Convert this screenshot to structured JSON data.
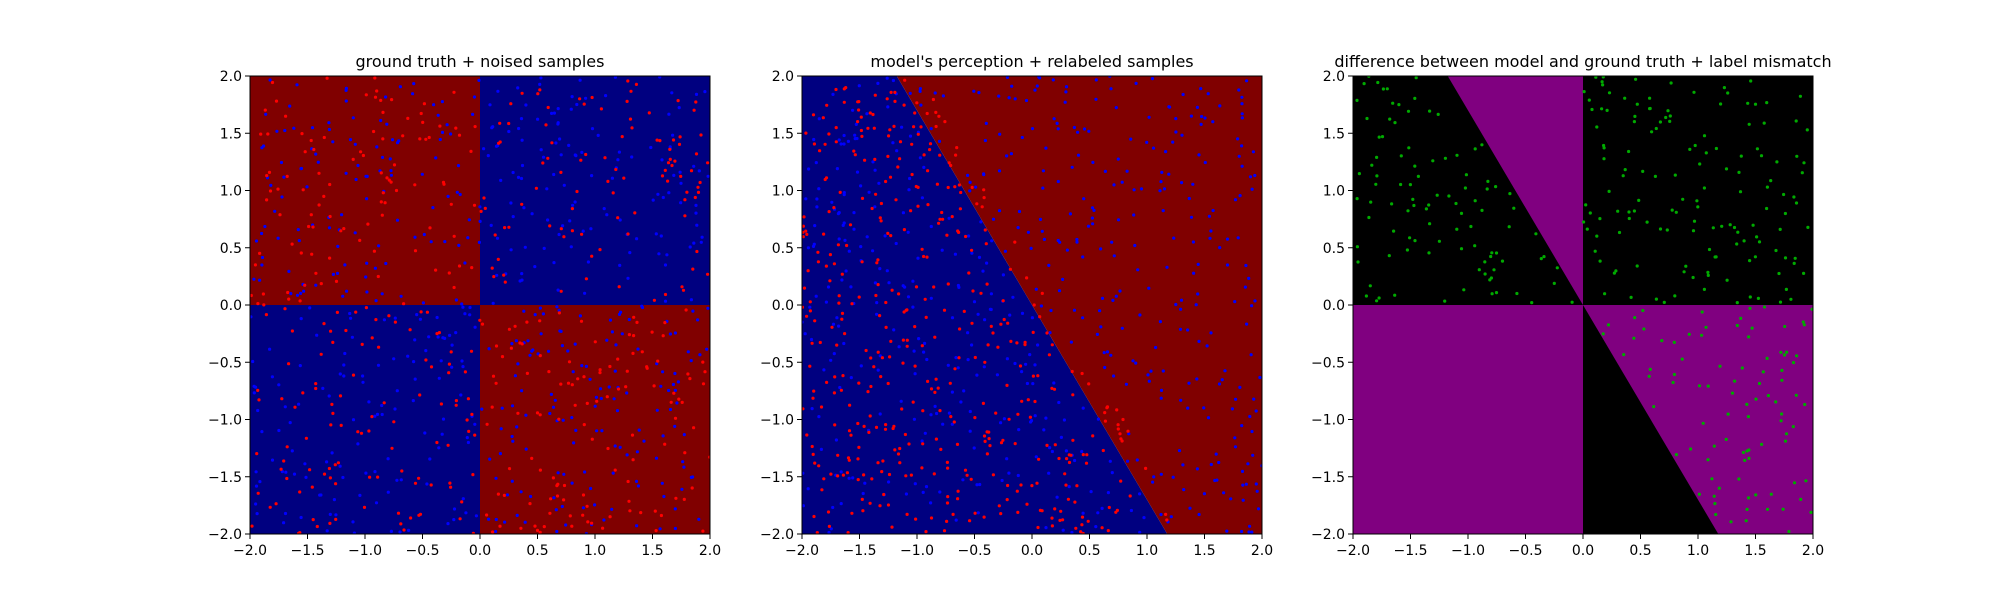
{
  "chart_data": [
    {
      "type": "heatmap",
      "title": "ground truth + noised samples",
      "xlim": [
        -2.0,
        2.0
      ],
      "ylim": [
        -2.0,
        2.0
      ],
      "xticks": [
        "−2.0",
        "−1.5",
        "−1.0",
        "−0.5",
        "0.0",
        "0.5",
        "1.0",
        "1.5",
        "2.0"
      ],
      "yticks": [
        "−2.0",
        "−1.5",
        "−1.0",
        "−0.5",
        "0.0",
        "0.5",
        "1.0",
        "1.5",
        "2.0"
      ],
      "background": "quadrant",
      "region_colors": {
        "class_a": "#800000",
        "class_b": "#000080"
      },
      "scatter": [
        {
          "color": "#0000ff",
          "count": 520,
          "region": "full"
        },
        {
          "color": "#ff0000",
          "count": 420,
          "region": "full"
        }
      ],
      "grid": false
    },
    {
      "type": "heatmap",
      "title": "model's perception + relabeled samples",
      "xlim": [
        -2.0,
        2.0
      ],
      "ylim": [
        -2.0,
        2.0
      ],
      "xticks": [
        "−2.0",
        "−1.5",
        "−1.0",
        "−0.5",
        "0.0",
        "0.5",
        "1.0",
        "1.5",
        "2.0"
      ],
      "yticks": [
        "−2.0",
        "−1.5",
        "−1.0",
        "−0.5",
        "0.0",
        "0.5",
        "1.0",
        "1.5",
        "2.0"
      ],
      "background": "diagonal",
      "boundary": {
        "y_intercept": 0.0,
        "slope": -1.7
      },
      "region_colors": {
        "class_a": "#800000",
        "class_b": "#000080"
      },
      "scatter": [
        {
          "color": "#0000ff",
          "count": 520,
          "region": "full"
        },
        {
          "color": "#ff0000",
          "count": 420,
          "region": "below-boundary"
        }
      ],
      "grid": false
    },
    {
      "type": "heatmap",
      "title": "difference between model and ground truth + label mismatch",
      "xlim": [
        -2.0,
        2.0
      ],
      "ylim": [
        -2.0,
        2.0
      ],
      "xticks": [
        "−2.0",
        "−1.5",
        "−1.0",
        "−0.5",
        "0.0",
        "0.5",
        "1.0",
        "1.5",
        "2.0"
      ],
      "yticks": [
        "−2.0",
        "−1.5",
        "−1.0",
        "−0.5",
        "0.0",
        "0.5",
        "1.0",
        "1.5",
        "2.0"
      ],
      "background": "difference",
      "region_colors": {
        "agree": "#000000",
        "disagree": "#800080"
      },
      "scatter": [
        {
          "color": "#00aa00",
          "count": 330,
          "region": "mismatch"
        }
      ],
      "grid": false
    }
  ]
}
